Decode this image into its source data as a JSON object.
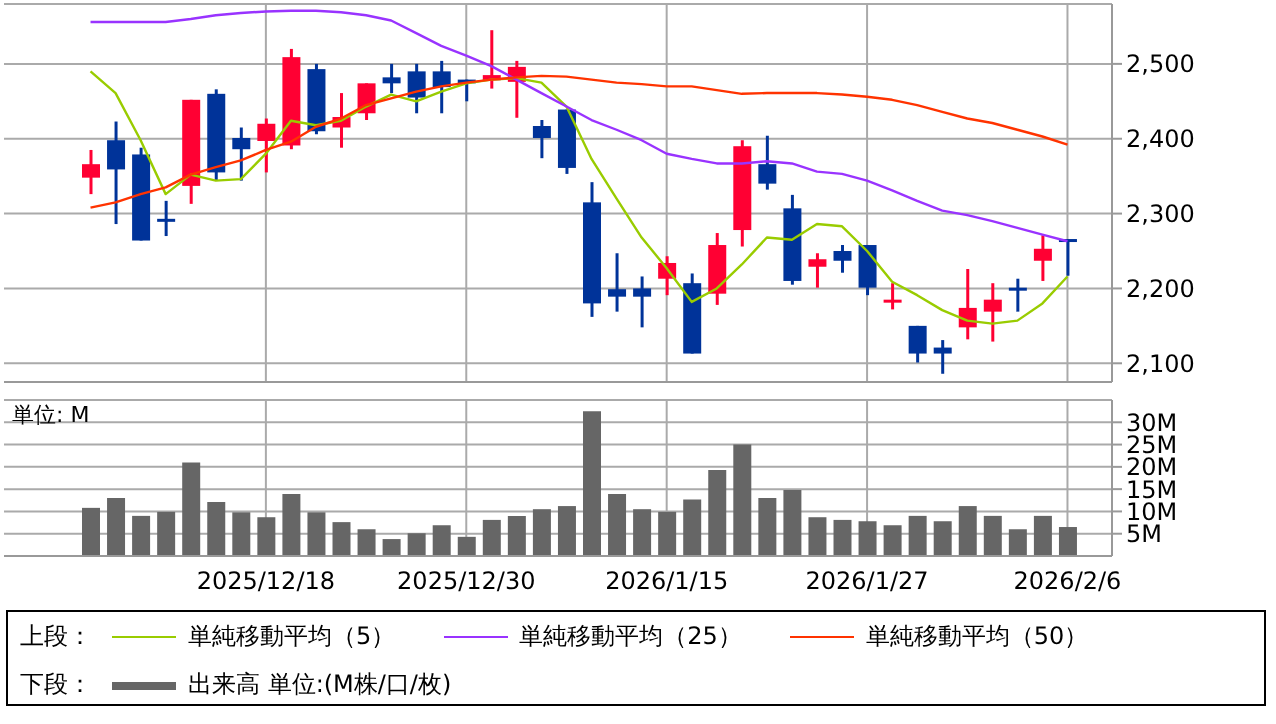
{
  "chart_data": [
    {
      "type": "candlestick",
      "categories": [
        null,
        null,
        null,
        null,
        null,
        null,
        null,
        "2025/12/18",
        null,
        null,
        null,
        null,
        null,
        null,
        null,
        "2025/12/30",
        null,
        null,
        null,
        null,
        null,
        null,
        null,
        "2026/1/15",
        null,
        null,
        null,
        null,
        null,
        null,
        null,
        "2026/1/27",
        null,
        null,
        null,
        null,
        null,
        null,
        null,
        "2026/2/6"
      ],
      "ohlc": [
        [
          2348,
          2385,
          2326,
          2366
        ],
        [
          2398,
          2423,
          2286,
          2359
        ],
        [
          2379,
          2388,
          2264,
          2264
        ],
        [
          2293,
          2317,
          2270,
          2289
        ],
        [
          2337,
          2452,
          2313,
          2452
        ],
        [
          2460,
          2466,
          2344,
          2355
        ],
        [
          2401,
          2415,
          2344,
          2386
        ],
        [
          2397,
          2427,
          2355,
          2420
        ],
        [
          2391,
          2520,
          2386,
          2509
        ],
        [
          2493,
          2500,
          2406,
          2410
        ],
        [
          2415,
          2461,
          2388,
          2429
        ],
        [
          2434,
          2474,
          2425,
          2474
        ],
        [
          2482,
          2500,
          2461,
          2474
        ],
        [
          2490,
          2500,
          2434,
          2455
        ],
        [
          2490,
          2504,
          2434,
          2469
        ],
        [
          2479,
          2479,
          2450,
          2474
        ],
        [
          2478,
          2545,
          2467,
          2485
        ],
        [
          2476,
          2504,
          2428,
          2496
        ],
        [
          2417,
          2425,
          2374,
          2401
        ],
        [
          2439,
          2439,
          2353,
          2361
        ],
        [
          2315,
          2342,
          2162,
          2180
        ],
        [
          2199,
          2247,
          2169,
          2189
        ],
        [
          2200,
          2216,
          2148,
          2189
        ],
        [
          2213,
          2243,
          2191,
          2234
        ],
        [
          2207,
          2220,
          2113,
          2113
        ],
        [
          2193,
          2274,
          2178,
          2258
        ],
        [
          2278,
          2398,
          2256,
          2390
        ],
        [
          2366,
          2404,
          2332,
          2340
        ],
        [
          2307,
          2325,
          2205,
          2210
        ],
        [
          2229,
          2247,
          2201,
          2239
        ],
        [
          2250,
          2258,
          2221,
          2237
        ],
        [
          2258,
          2258,
          2191,
          2201
        ],
        [
          2182,
          2207,
          2172,
          2185
        ],
        [
          2150,
          2150,
          2101,
          2113
        ],
        [
          2121,
          2131,
          2086,
          2113
        ],
        [
          2148,
          2226,
          2132,
          2174
        ],
        [
          2169,
          2207,
          2129,
          2185
        ],
        [
          2201,
          2213,
          2169,
          2197
        ],
        [
          2237,
          2271,
          2210,
          2253
        ],
        [
          2266,
          2266,
          2217,
          2262
        ]
      ],
      "colors": [
        "#ff0033",
        "#003399",
        "#003399",
        "#003399",
        "#ff0033",
        "#003399",
        "#003399",
        "#ff0033",
        "#ff0033",
        "#003399",
        "#ff0033",
        "#ff0033",
        "#003399",
        "#003399",
        "#003399",
        "#003399",
        "#ff0033",
        "#ff0033",
        "#003399",
        "#003399",
        "#003399",
        "#003399",
        "#003399",
        "#ff0033",
        "#003399",
        "#ff0033",
        "#ff0033",
        "#003399",
        "#003399",
        "#ff0033",
        "#003399",
        "#003399",
        "#ff0033",
        "#003399",
        "#003399",
        "#ff0033",
        "#ff0033",
        "#003399",
        "#ff0033",
        "#003399"
      ],
      "series": [
        {
          "type": "line",
          "name": "単純移動平均（5）",
          "color": "#99cc00",
          "values": [
            2490,
            2461,
            2398,
            2326,
            2352,
            2344,
            2346,
            2380,
            2424,
            2418,
            2424,
            2443,
            2459,
            2450,
            2463,
            2474,
            2479,
            2481,
            2475,
            2443,
            2373,
            2320,
            2268,
            2227,
            2182,
            2200,
            2232,
            2268,
            2265,
            2286,
            2283,
            2250,
            2209,
            2191,
            2171,
            2157,
            2153,
            2157,
            2180,
            2216
          ]
        },
        {
          "type": "line",
          "name": "単純移動平均（25）",
          "color": "#9933ff",
          "values": [
            2556,
            2556,
            2556,
            2556,
            2560,
            2565,
            2568,
            2570,
            2571,
            2571,
            2569,
            2565,
            2558,
            2541,
            2524,
            2511,
            2497,
            2479,
            2461,
            2443,
            2425,
            2412,
            2398,
            2380,
            2373,
            2367,
            2367,
            2370,
            2367,
            2356,
            2353,
            2344,
            2331,
            2317,
            2304,
            2298,
            2290,
            2281,
            2272,
            2263
          ]
        },
        {
          "type": "line",
          "name": "単純移動平均（50）",
          "color": "#ff3300",
          "values": [
            2308,
            2315,
            2326,
            2335,
            2352,
            2362,
            2371,
            2385,
            2396,
            2416,
            2427,
            2445,
            2454,
            2463,
            2470,
            2475,
            2479,
            2482,
            2484,
            2483,
            2479,
            2475,
            2473,
            2470,
            2470,
            2465,
            2460,
            2461,
            2461,
            2461,
            2459,
            2456,
            2452,
            2445,
            2436,
            2427,
            2421,
            2412,
            2403,
            2392
          ]
        }
      ],
      "ylim": [
        2075,
        2580
      ],
      "yticks": [
        {
          "value": 2100,
          "label": "2,100"
        },
        {
          "value": 2200,
          "label": "2,200"
        },
        {
          "value": 2300,
          "label": "2,300"
        },
        {
          "value": 2400,
          "label": "2,400"
        },
        {
          "value": 2500,
          "label": "2,500"
        }
      ],
      "grid": true,
      "tick_labels": "y",
      "marker": "none",
      "legend": "bottom",
      "legend_title": "上段："
    },
    {
      "type": "bar",
      "categories": [
        null,
        null,
        null,
        null,
        null,
        null,
        null,
        "2025/12/18",
        null,
        null,
        null,
        null,
        null,
        null,
        null,
        "2025/12/30",
        null,
        null,
        null,
        null,
        null,
        null,
        null,
        "2026/1/15",
        null,
        null,
        null,
        null,
        null,
        null,
        null,
        "2026/1/27",
        null,
        null,
        null,
        null,
        null,
        null,
        null,
        "2026/2/6"
      ],
      "series": [
        {
          "name": "出来高 単位:(M株/口/枚)",
          "color": "#666666",
          "values": [
            10.8,
            13.0,
            9.0,
            9.9,
            21.0,
            12.1,
            9.8,
            8.7,
            13.9,
            9.8,
            7.6,
            6.0,
            3.8,
            5.1,
            6.9,
            4.3,
            8.1,
            9.0,
            10.5,
            11.2,
            32.5,
            13.9,
            10.5,
            9.9,
            12.7,
            19.3,
            25.0,
            13.0,
            14.8,
            8.7,
            8.1,
            7.8,
            6.9,
            9.0,
            7.8,
            11.2,
            9.0,
            6.0,
            9.0,
            6.5
          ]
        }
      ],
      "ylim": [
        0,
        35
      ],
      "yticks": [
        {
          "value": 5,
          "label": "5M"
        },
        {
          "value": 10,
          "label": "10M"
        },
        {
          "value": 15,
          "label": "15M"
        },
        {
          "value": 20,
          "label": "20M"
        },
        {
          "value": 25,
          "label": "25M"
        },
        {
          "value": 30,
          "label": "30M"
        }
      ],
      "grid": true,
      "legend": "bottom",
      "legend_title": "下段：",
      "annotations": [
        "単位: M"
      ]
    }
  ]
}
